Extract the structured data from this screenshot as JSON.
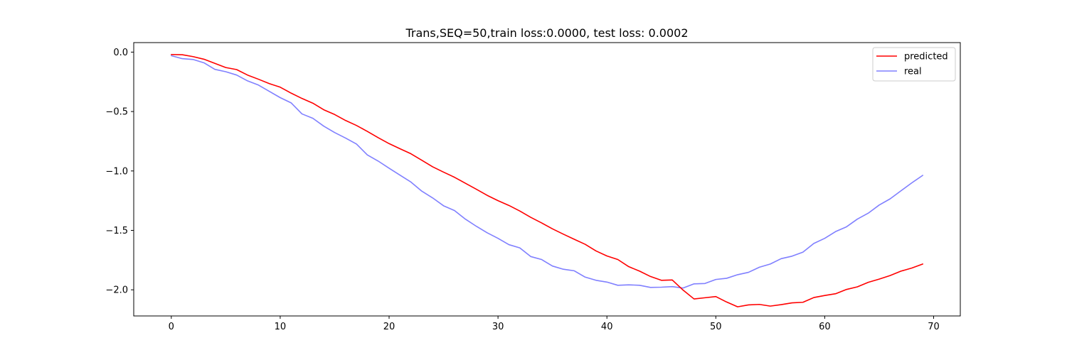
{
  "chart_data": {
    "type": "line",
    "title": "Trans,SEQ=50,train loss:0.0000, test loss: 0.0002",
    "xlabel": "",
    "ylabel": "",
    "xlim": [
      -3.45,
      72.45
    ],
    "ylim": [
      -2.22,
      0.08
    ],
    "xticks": [
      0,
      10,
      20,
      30,
      40,
      50,
      60,
      70
    ],
    "xtick_labels": [
      "0",
      "10",
      "20",
      "30",
      "40",
      "50",
      "60",
      "70"
    ],
    "yticks": [
      0.0,
      -0.5,
      -1.0,
      -1.5,
      -2.0
    ],
    "ytick_labels": [
      "0.0",
      "−0.5",
      "−1.0",
      "−1.5",
      "−2.0"
    ],
    "grid": false,
    "legend_position": "top-right",
    "series": [
      {
        "name": "predicted",
        "color": "#ff0000",
        "values": [
          -0.02,
          -0.022,
          -0.038,
          -0.06,
          -0.095,
          -0.13,
          -0.147,
          -0.193,
          -0.228,
          -0.265,
          -0.295,
          -0.345,
          -0.39,
          -0.43,
          -0.485,
          -0.525,
          -0.575,
          -0.617,
          -0.667,
          -0.72,
          -0.77,
          -0.813,
          -0.855,
          -0.91,
          -0.965,
          -1.01,
          -1.053,
          -1.103,
          -1.153,
          -1.205,
          -1.25,
          -1.29,
          -1.337,
          -1.39,
          -1.437,
          -1.487,
          -1.532,
          -1.575,
          -1.617,
          -1.673,
          -1.715,
          -1.745,
          -1.805,
          -1.843,
          -1.888,
          -1.92,
          -1.917,
          -2.003,
          -2.077,
          -2.067,
          -2.057,
          -2.103,
          -2.143,
          -2.127,
          -2.123,
          -2.137,
          -2.125,
          -2.11,
          -2.105,
          -2.065,
          -2.048,
          -2.033,
          -1.997,
          -1.975,
          -1.937,
          -1.91,
          -1.88,
          -1.843,
          -1.817,
          -1.783
        ]
      },
      {
        "name": "real",
        "color": "#8080ff",
        "values": [
          -0.03,
          -0.055,
          -0.062,
          -0.09,
          -0.145,
          -0.165,
          -0.193,
          -0.242,
          -0.277,
          -0.33,
          -0.383,
          -0.427,
          -0.52,
          -0.557,
          -0.623,
          -0.677,
          -0.723,
          -0.773,
          -0.865,
          -0.917,
          -0.977,
          -1.035,
          -1.093,
          -1.17,
          -1.227,
          -1.293,
          -1.333,
          -1.405,
          -1.465,
          -1.52,
          -1.567,
          -1.62,
          -1.647,
          -1.72,
          -1.745,
          -1.8,
          -1.827,
          -1.84,
          -1.893,
          -1.92,
          -1.935,
          -1.962,
          -1.958,
          -1.962,
          -1.98,
          -1.978,
          -1.973,
          -1.985,
          -1.95,
          -1.947,
          -1.913,
          -1.903,
          -1.873,
          -1.853,
          -1.81,
          -1.783,
          -1.738,
          -1.717,
          -1.683,
          -1.61,
          -1.567,
          -1.51,
          -1.47,
          -1.405,
          -1.355,
          -1.287,
          -1.235,
          -1.167,
          -1.1,
          -1.037
        ]
      }
    ]
  }
}
